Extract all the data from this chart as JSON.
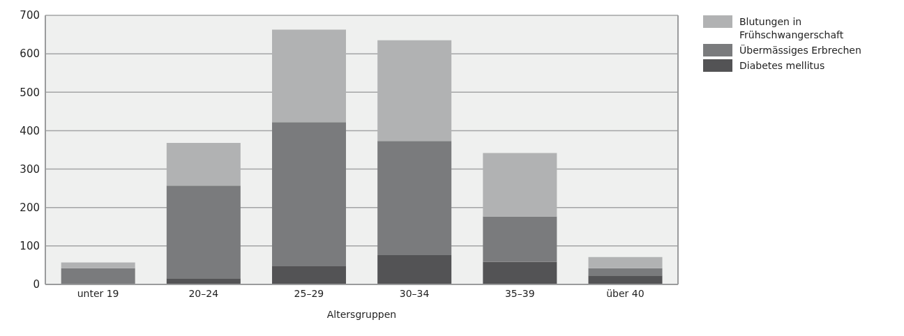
{
  "chart_data": {
    "type": "bar",
    "stacked": true,
    "xlabel": "Altersgruppen",
    "categories": [
      "unter 19",
      "20–24",
      "25–29",
      "30–34",
      "35–39",
      "über 40"
    ],
    "series": [
      {
        "name": "Diabetes mellitus",
        "color": "#535355",
        "values": [
          0,
          16,
          47,
          76,
          59,
          23
        ]
      },
      {
        "name": "Übermässiges Erbrechen",
        "color": "#7a7b7d",
        "values": [
          42,
          241,
          375,
          297,
          118,
          19
        ]
      },
      {
        "name": "Blutungen in Frühschwangerschaft",
        "color": "#b1b2b3",
        "values": [
          15,
          111,
          241,
          262,
          165,
          29
        ]
      }
    ],
    "ylim": [
      0,
      700
    ],
    "yticks": [
      0,
      100,
      200,
      300,
      400,
      500,
      600,
      700
    ],
    "grid": "y",
    "legend": "top right"
  }
}
